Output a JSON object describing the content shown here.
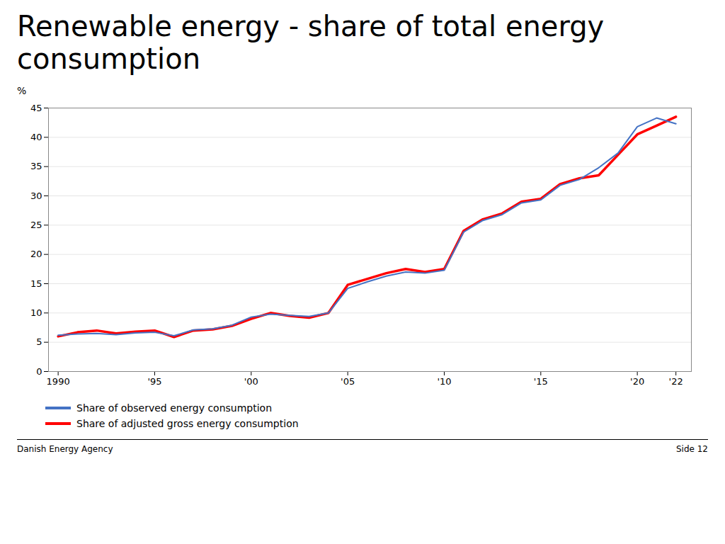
{
  "chart_data": {
    "type": "line",
    "title": "Renewable energy - share of total energy consumption",
    "y_label": "%",
    "annotations": [
      "Danish Energy Agency",
      "Side 12"
    ],
    "x": [
      1990,
      1991,
      1992,
      1993,
      1994,
      1995,
      1996,
      1997,
      1998,
      1999,
      2000,
      2001,
      2002,
      2003,
      2004,
      2005,
      2006,
      2007,
      2008,
      2009,
      2010,
      2011,
      2012,
      2013,
      2014,
      2015,
      2016,
      2017,
      2018,
      2019,
      2020,
      2021,
      2022
    ],
    "series": [
      {
        "name": "Share of observed energy consumption",
        "color": "#4472C4",
        "values": [
          6.2,
          6.4,
          6.5,
          6.3,
          6.6,
          6.7,
          6.1,
          7.1,
          7.3,
          7.9,
          9.3,
          9.8,
          9.6,
          9.4,
          10.0,
          14.2,
          15.3,
          16.3,
          17.0,
          16.8,
          17.3,
          23.8,
          25.8,
          26.8,
          28.8,
          29.3,
          31.8,
          32.8,
          34.8,
          37.3,
          41.8,
          43.3,
          42.3
        ]
      },
      {
        "name": "Share of adjusted gross energy consumption",
        "color": "#FF0000",
        "values": [
          6.0,
          6.7,
          7.0,
          6.5,
          6.8,
          7.0,
          5.9,
          7.0,
          7.2,
          7.8,
          9.0,
          10.0,
          9.5,
          9.2,
          10.0,
          14.8,
          15.8,
          16.8,
          17.5,
          17.0,
          17.5,
          24.0,
          26.0,
          27.0,
          29.0,
          29.5,
          32.0,
          33.0,
          33.5,
          37.0,
          40.5,
          42.0,
          43.5
        ]
      }
    ],
    "xlim": [
      1989.5,
      2022.8
    ],
    "xticks": [
      1990,
      {
        "value": 1995,
        "label": "'95"
      },
      {
        "value": 2000,
        "label": "'00"
      },
      {
        "value": 2005,
        "label": "'05"
      },
      {
        "value": 2010,
        "label": "'10"
      },
      {
        "value": 2015,
        "label": "'15"
      },
      {
        "value": 2020,
        "label": "'20"
      },
      {
        "value": 2022,
        "label": "'22"
      }
    ],
    "ylim": [
      0,
      45
    ],
    "yticks": [
      0,
      5,
      10,
      15,
      20,
      25,
      30,
      35,
      40,
      45
    ],
    "grid": true,
    "legend": "bottom"
  }
}
